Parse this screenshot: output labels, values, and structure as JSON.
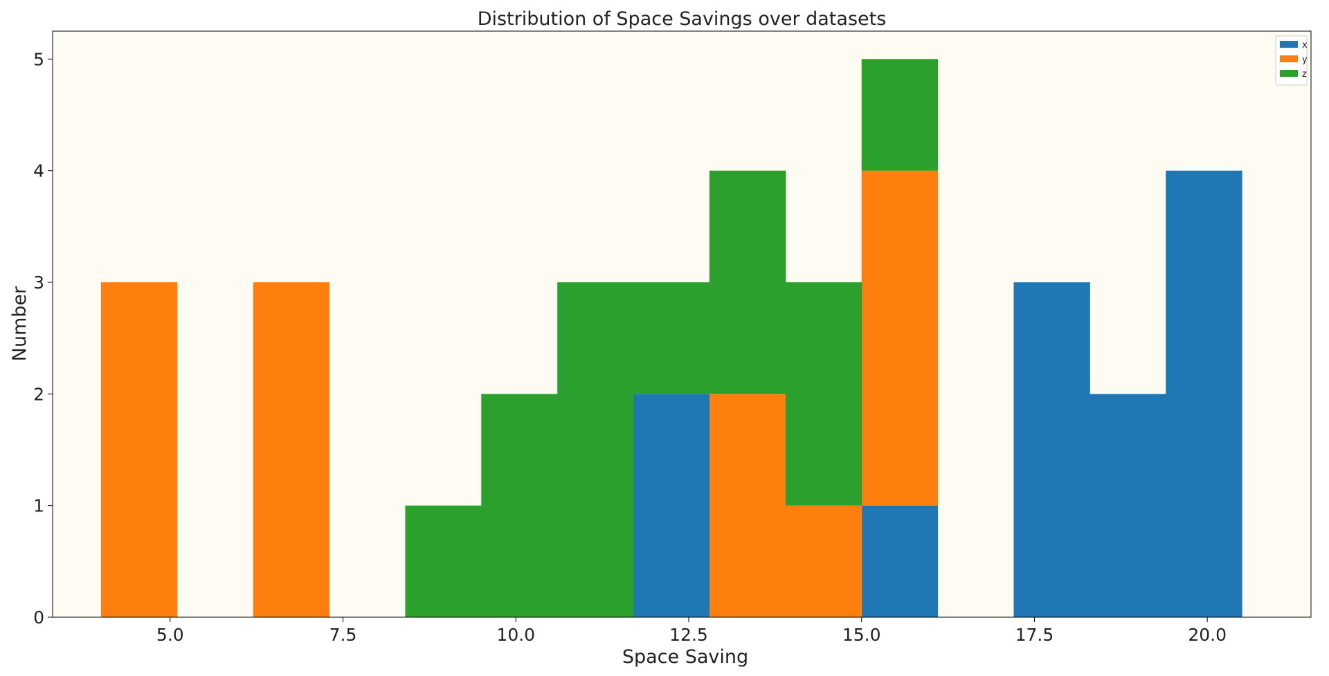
{
  "chart_data": {
    "type": "bar",
    "title": "Distribution of Space Savings over datasets",
    "xlabel": "Space Saving",
    "ylabel": "Number",
    "xlim": [
      3.3,
      21.5
    ],
    "ylim": [
      0,
      5.25
    ],
    "bin_edges": [
      4.0,
      5.1,
      6.2,
      7.3,
      8.4,
      9.5,
      10.6,
      11.7,
      12.8,
      13.9,
      15.0,
      16.1,
      17.2,
      18.3,
      19.4,
      20.5
    ],
    "x_ticks": [
      "5.0",
      "7.5",
      "10.0",
      "12.5",
      "15.0",
      "17.5",
      "20.0"
    ],
    "x_tick_values": [
      5.0,
      7.5,
      10.0,
      12.5,
      15.0,
      17.5,
      20.0
    ],
    "y_ticks": [
      "0",
      "1",
      "2",
      "3",
      "4",
      "5"
    ],
    "y_tick_values": [
      0,
      1,
      2,
      3,
      4,
      5
    ],
    "series": [
      {
        "name": "x",
        "color": "#1f77b4",
        "values": [
          0,
          0,
          0,
          0,
          0,
          0,
          0,
          2,
          0,
          0,
          1,
          0,
          3,
          2,
          4
        ]
      },
      {
        "name": "y",
        "color": "#ff7f0e",
        "values": [
          3,
          0,
          3,
          0,
          0,
          0,
          0,
          0,
          2,
          1,
          3,
          0,
          0,
          0,
          0
        ]
      },
      {
        "name": "z",
        "color": "#2ca02c",
        "values": [
          0,
          0,
          0,
          0,
          1,
          2,
          3,
          1,
          2,
          2,
          1,
          0,
          0,
          0,
          0
        ]
      }
    ],
    "stacked": true,
    "legend": "top-right",
    "grid": false,
    "plot_background": "#fefbf3"
  }
}
